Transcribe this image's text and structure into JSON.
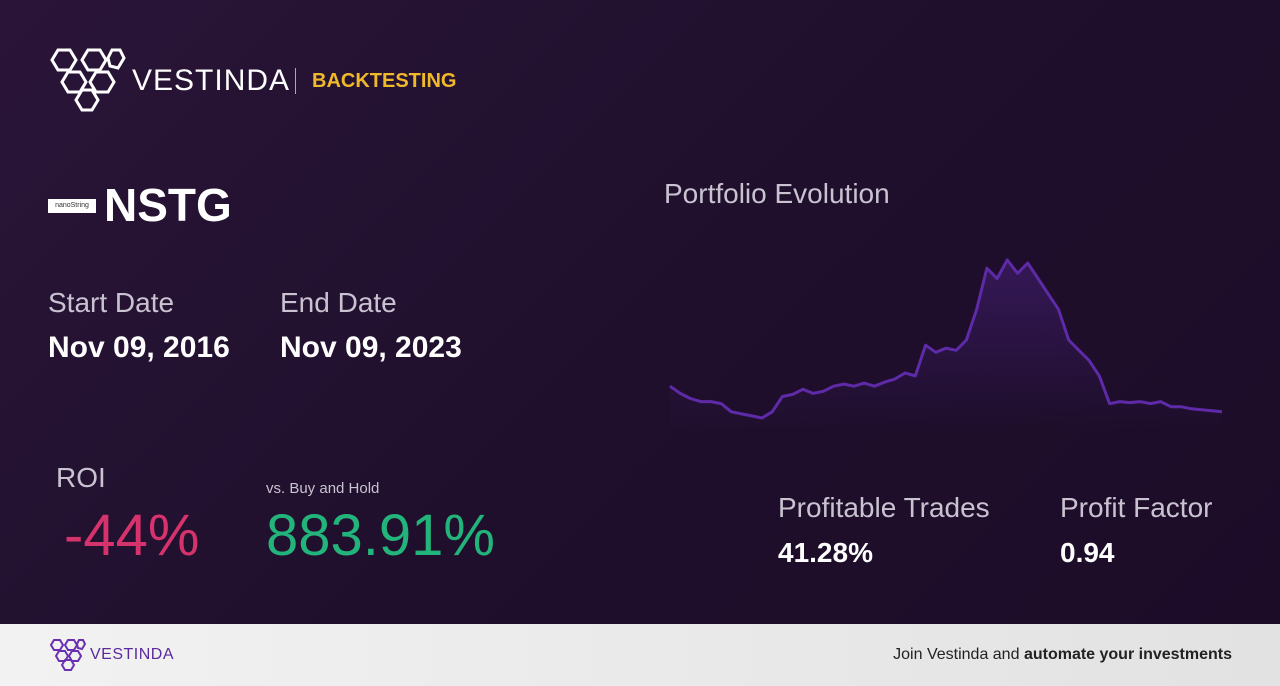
{
  "header": {
    "brand": "VESTINDA",
    "section": "BACKTESTING"
  },
  "asset": {
    "logo_text": "nanoString",
    "ticker": "NSTG"
  },
  "dates": {
    "start_label": "Start Date",
    "start_value": "Nov 09, 2016",
    "end_label": "End Date",
    "end_value": "Nov 09, 2023"
  },
  "roi": {
    "label": "ROI",
    "value": "-44%",
    "compare_label": "vs. Buy and Hold",
    "compare_value": "883.91%"
  },
  "chart": {
    "type": "line",
    "title": "Portfolio Evolution",
    "color": "#5e2aa8",
    "values": [
      45,
      38,
      33,
      30,
      30,
      28,
      20,
      18,
      16,
      14,
      20,
      35,
      37,
      42,
      38,
      40,
      45,
      47,
      45,
      48,
      45,
      49,
      52,
      58,
      55,
      85,
      78,
      82,
      80,
      90,
      120,
      160,
      150,
      168,
      155,
      165,
      150,
      135,
      120,
      90,
      80,
      70,
      55,
      28,
      30,
      29,
      30,
      28,
      30,
      25,
      25,
      23,
      22,
      21,
      20
    ]
  },
  "stats": [
    {
      "label": "Profitable Trades",
      "value": "41.28%"
    },
    {
      "label": "Profit Factor",
      "value": "0.94"
    }
  ],
  "footer": {
    "brand": "VESTINDA",
    "cta_prefix": "Join Vestinda and",
    "cta_bold": "automate your investments"
  }
}
